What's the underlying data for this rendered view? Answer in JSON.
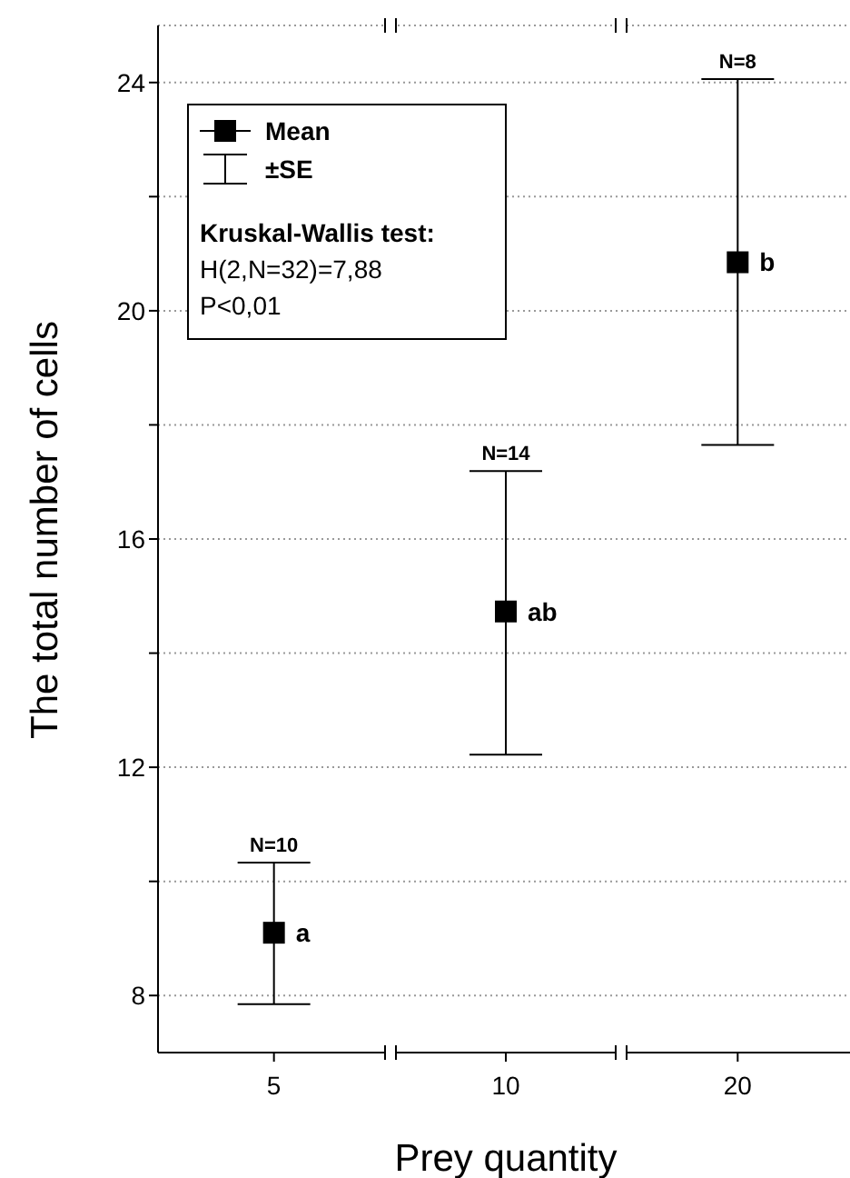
{
  "chart_data": {
    "type": "scatter",
    "xlabel": "Prey quantity",
    "ylabel": "The total number of cells",
    "categories": [
      "5",
      "10",
      "20"
    ],
    "series": [
      {
        "name": "Mean",
        "color": "#000000",
        "values": [
          9.1,
          14.73,
          20.85
        ],
        "errors": [
          [
            7.85,
            10.33
          ],
          [
            12.22,
            17.19
          ],
          [
            17.65,
            24.06
          ]
        ]
      }
    ],
    "ylim": [
      7,
      25
    ],
    "yticks": [
      8,
      {
        "value": 10,
        "label": null
      },
      12,
      {
        "value": 14,
        "label": null
      },
      16,
      {
        "value": 18,
        "label": null
      },
      20,
      {
        "value": 22,
        "label": null
      },
      24
    ],
    "grid": "y",
    "legend": "top left",
    "marker": "square",
    "annotations": [
      {
        "text": "N=10",
        "x": "5",
        "y": 10.33
      },
      {
        "text": "N=14",
        "x": "10",
        "y": 17.19
      },
      {
        "text": "N=8",
        "x": "20",
        "y": 24.06
      },
      {
        "text": "a",
        "x": "5",
        "y": 9.1
      },
      {
        "text": "ab",
        "x": "10",
        "y": 14.73
      },
      {
        "text": "b",
        "x": "20",
        "y": 20.85
      },
      "±SE",
      "Kruskal-Wallis test:",
      "H(2,N=32)=7,88",
      "P<0,01"
    ]
  }
}
